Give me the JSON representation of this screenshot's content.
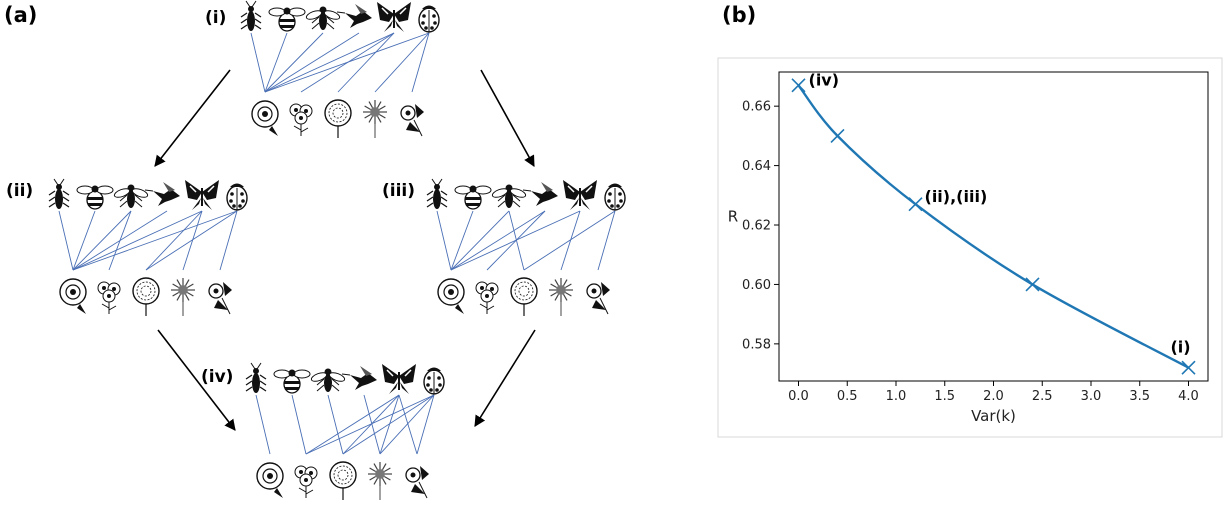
{
  "panel_a": {
    "label": "(a)",
    "networks": [
      {
        "label": "(i)",
        "edges": [
          [
            0,
            0
          ],
          [
            1,
            0
          ],
          [
            2,
            0
          ],
          [
            3,
            0
          ],
          [
            4,
            0
          ],
          [
            4,
            1
          ],
          [
            4,
            2
          ],
          [
            5,
            0
          ],
          [
            5,
            3
          ],
          [
            5,
            4
          ]
        ]
      },
      {
        "label": "(ii)",
        "edges": [
          [
            0,
            0
          ],
          [
            1,
            0
          ],
          [
            2,
            0
          ],
          [
            2,
            1
          ],
          [
            3,
            0
          ],
          [
            4,
            0
          ],
          [
            4,
            2
          ],
          [
            4,
            3
          ],
          [
            5,
            0
          ],
          [
            5,
            2
          ],
          [
            5,
            4
          ]
        ]
      },
      {
        "label": "(iii)",
        "edges": [
          [
            0,
            0
          ],
          [
            1,
            0
          ],
          [
            2,
            0
          ],
          [
            2,
            2
          ],
          [
            3,
            0
          ],
          [
            3,
            1
          ],
          [
            4,
            0
          ],
          [
            4,
            3
          ],
          [
            5,
            2
          ],
          [
            5,
            4
          ]
        ]
      },
      {
        "label": "(iv)",
        "edges": [
          [
            0,
            0
          ],
          [
            1,
            1
          ],
          [
            2,
            2
          ],
          [
            3,
            3
          ],
          [
            4,
            1
          ],
          [
            4,
            2
          ],
          [
            4,
            3
          ],
          [
            4,
            4
          ],
          [
            5,
            1
          ],
          [
            5,
            2
          ],
          [
            5,
            3
          ],
          [
            5,
            4
          ]
        ]
      }
    ],
    "pollinator_icons": [
      "beetle-icon",
      "bumblebee-icon",
      "fly-icon",
      "hummingbird-icon",
      "butterfly-icon",
      "ladybug-icon"
    ],
    "flower_icons": [
      "rose-icon",
      "daisy-cluster-icon",
      "dahlia-icon",
      "sunflower-icon",
      "wildflower-icon"
    ]
  },
  "panel_b": {
    "label": "(b)"
  },
  "chart_data": {
    "type": "line",
    "x": [
      0.0,
      0.4,
      1.2,
      2.4,
      4.0
    ],
    "y": [
      0.667,
      0.65,
      0.627,
      0.6,
      0.572
    ],
    "xlabel": "Var(k)",
    "ylabel": "R",
    "xlim": [
      -0.2,
      4.2
    ],
    "ylim": [
      0.5675,
      0.6715
    ],
    "xticks": [
      0.0,
      0.5,
      1.0,
      1.5,
      2.0,
      2.5,
      3.0,
      3.5,
      4.0
    ],
    "xtick_labels": [
      "0.0",
      "0.5",
      "1.0",
      "1.5",
      "2.0",
      "2.5",
      "3.0",
      "3.5",
      "4.0"
    ],
    "yticks": [
      0.58,
      0.6,
      0.62,
      0.64,
      0.66
    ],
    "ytick_labels": [
      "0.58",
      "0.60",
      "0.62",
      "0.64",
      "0.66"
    ],
    "marker": "x",
    "line_color": "#1f77b4",
    "grid": false,
    "annotations": [
      {
        "text": "(iv)",
        "x": 0.0,
        "y": 0.667
      },
      {
        "text": "(ii),(iii)",
        "x": 1.2,
        "y": 0.627
      },
      {
        "text": "(i)",
        "x": 4.0,
        "y": 0.572
      }
    ]
  }
}
